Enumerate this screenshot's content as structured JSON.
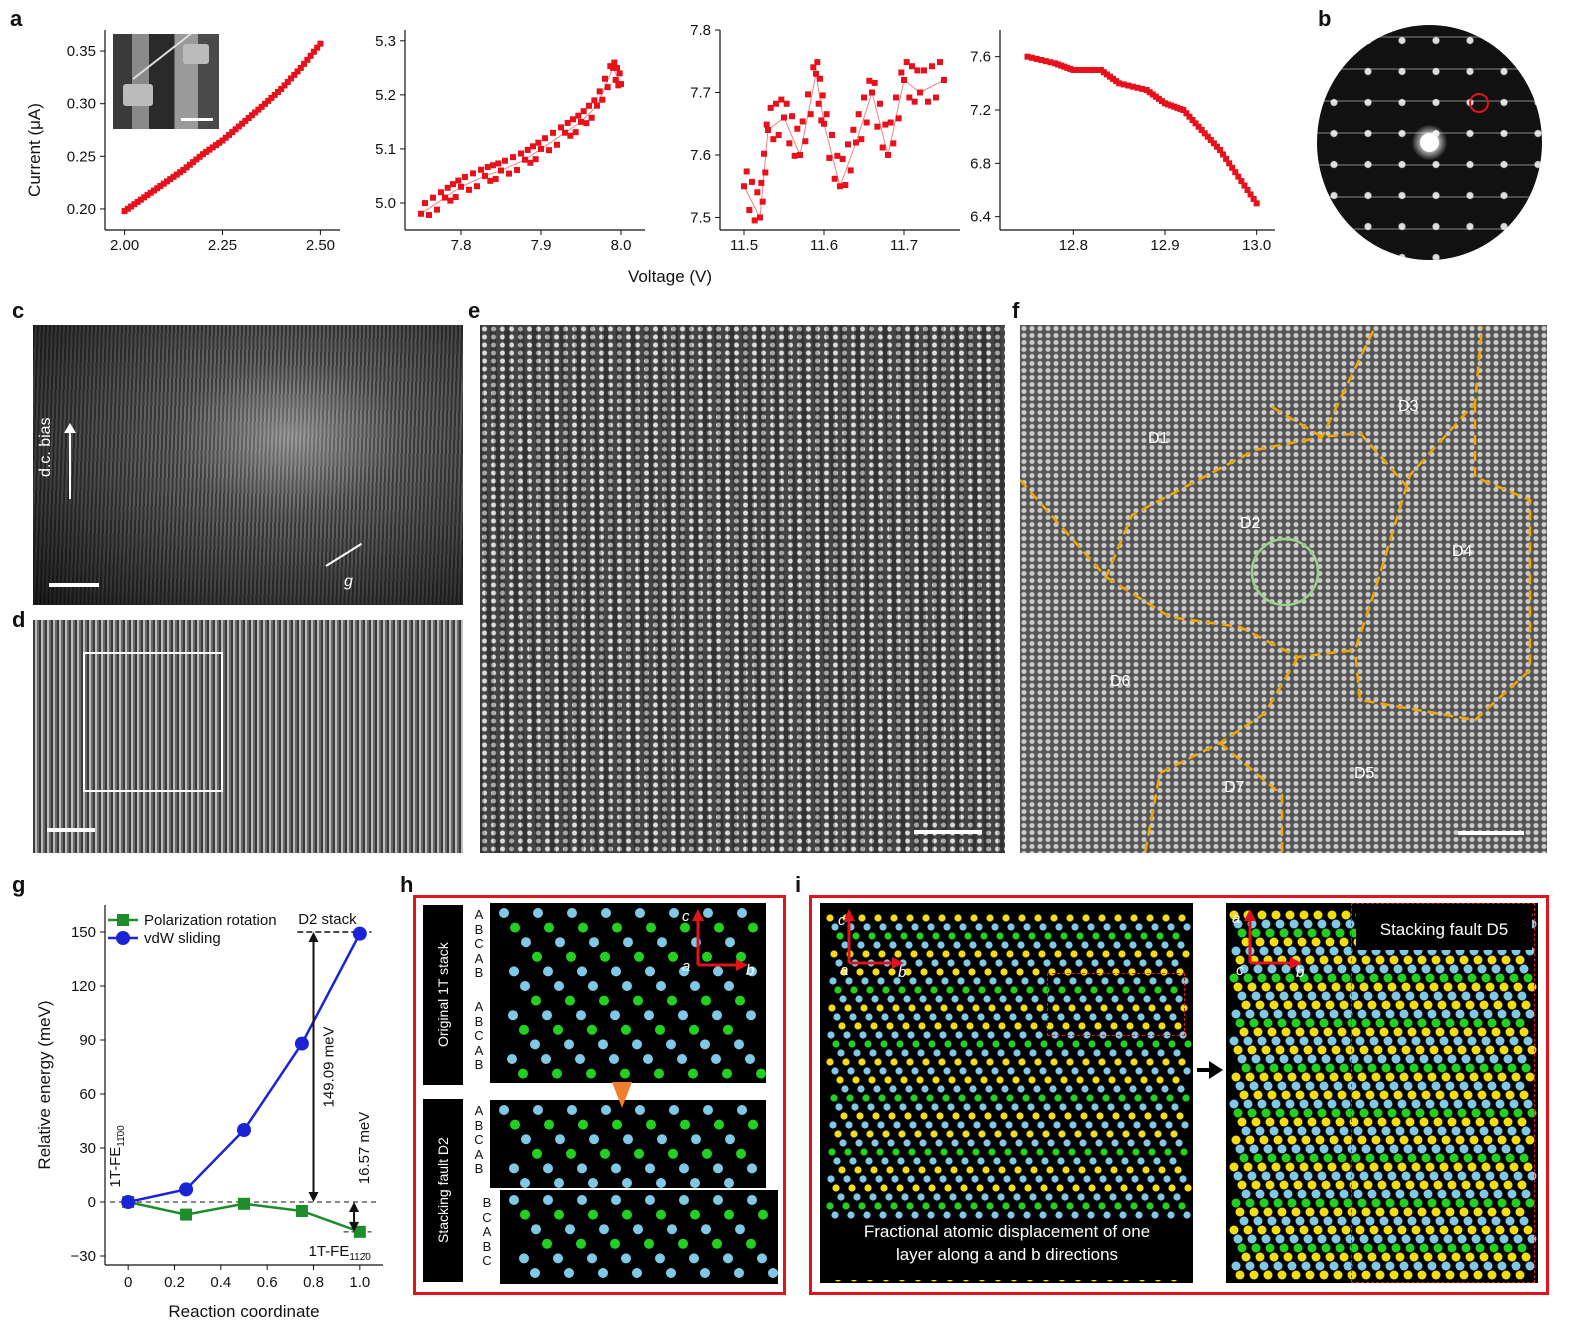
{
  "panel_labels": {
    "a": "a",
    "b": "b",
    "c": "c",
    "d": "d",
    "e": "e",
    "f": "f",
    "g": "g",
    "h": "h",
    "i": "i"
  },
  "panel_a": {
    "shared_xlabel": "Voltage (V)",
    "ylabel": "Current (μA)",
    "subplots": [
      {
        "xticks": [
          "2.00",
          "2.25",
          "2.50"
        ],
        "yticks": [
          "0.20",
          "0.25",
          "0.30",
          "0.35"
        ]
      },
      {
        "xticks": [
          "7.8",
          "7.9",
          "8.0"
        ],
        "yticks": [
          "5.0",
          "5.1",
          "5.2",
          "5.3"
        ]
      },
      {
        "xticks": [
          "11.5",
          "11.6",
          "11.7"
        ],
        "yticks": [
          "7.5",
          "7.6",
          "7.7",
          "7.8"
        ]
      },
      {
        "xticks": [
          "12.8",
          "12.9",
          "13.0"
        ],
        "yticks": [
          "6.4",
          "6.8",
          "7.2",
          "7.6"
        ]
      }
    ]
  },
  "panel_c": {
    "bias_label": "d.c. bias",
    "g_label": "g"
  },
  "panel_f": {
    "domains": [
      "D1",
      "D2",
      "D3",
      "D4",
      "D5",
      "D6",
      "D7"
    ]
  },
  "panel_h": {
    "original_label": "Original 1T stack",
    "fault_label": "Stacking fault D2",
    "seq1": "A B C A B",
    "seq2": "A B C A B",
    "seq3": "A B C A B",
    "seq4": "B C A B C",
    "axis_c": "c",
    "axis_a": "a",
    "axis_b": "b"
  },
  "panel_i": {
    "caption_line1": "Fractional atomic displacement of one",
    "caption_line2": "layer along a and b directions",
    "fault_label": "Stacking fault D5",
    "axis_c": "c",
    "axis_a": "a",
    "axis_b": "b"
  },
  "chart_data": [
    {
      "type": "line",
      "id": "a1",
      "title": "",
      "xlabel": "Voltage (V)",
      "ylabel": "Current (μA)",
      "xlim": [
        1.95,
        2.55
      ],
      "ylim": [
        0.18,
        0.37
      ],
      "x": [
        2.0,
        2.05,
        2.1,
        2.15,
        2.2,
        2.25,
        2.3,
        2.35,
        2.4,
        2.45,
        2.5
      ],
      "series": [
        {
          "name": "I-V",
          "values": [
            0.198,
            0.211,
            0.224,
            0.237,
            0.252,
            0.265,
            0.281,
            0.297,
            0.314,
            0.334,
            0.357
          ]
        }
      ]
    },
    {
      "type": "line",
      "id": "a2",
      "xlim": [
        7.73,
        8.03
      ],
      "ylim": [
        4.95,
        5.32
      ],
      "x": [
        7.75,
        7.78,
        7.8,
        7.83,
        7.85,
        7.88,
        7.9,
        7.93,
        7.95,
        7.97,
        7.99,
        8.0
      ],
      "series": [
        {
          "name": "I-V",
          "values": [
            4.98,
            5.01,
            5.03,
            5.05,
            5.06,
            5.08,
            5.1,
            5.13,
            5.15,
            5.18,
            5.25,
            5.22
          ]
        }
      ]
    },
    {
      "type": "line",
      "id": "a3",
      "xlim": [
        11.47,
        11.77
      ],
      "ylim": [
        7.48,
        7.8
      ],
      "x": [
        11.5,
        11.52,
        11.53,
        11.55,
        11.57,
        11.59,
        11.6,
        11.62,
        11.64,
        11.66,
        11.68,
        11.7,
        11.72,
        11.75
      ],
      "series": [
        {
          "name": "I-V",
          "values": [
            7.55,
            7.5,
            7.64,
            7.66,
            7.6,
            7.73,
            7.65,
            7.55,
            7.62,
            7.7,
            7.6,
            7.72,
            7.7,
            7.72
          ]
        }
      ]
    },
    {
      "type": "line",
      "id": "a4",
      "xlim": [
        12.72,
        13.02
      ],
      "ylim": [
        6.3,
        7.8
      ],
      "x": [
        12.75,
        12.78,
        12.8,
        12.83,
        12.85,
        12.88,
        12.9,
        12.92,
        12.94,
        12.96,
        12.98,
        13.0
      ],
      "series": [
        {
          "name": "I-V",
          "values": [
            7.6,
            7.55,
            7.5,
            7.5,
            7.4,
            7.35,
            7.25,
            7.2,
            7.05,
            6.9,
            6.7,
            6.5
          ]
        }
      ]
    },
    {
      "type": "line",
      "id": "g",
      "title": "",
      "xlabel": "Reaction coordinate",
      "ylabel": "Relative energy (meV)",
      "xlim": [
        -0.1,
        1.1
      ],
      "ylim": [
        -35,
        165
      ],
      "xticks": [
        "0",
        "0.2",
        "0.4",
        "0.6",
        "0.8",
        "1.0"
      ],
      "yticks": [
        "−30",
        "0",
        "30",
        "60",
        "90",
        "120",
        "150"
      ],
      "x": [
        0,
        0.25,
        0.5,
        0.75,
        1.0
      ],
      "series": [
        {
          "name": "Polarization rotation",
          "values": [
            0,
            -7,
            -1,
            -5,
            -16.57
          ],
          "color": "#1e8c2b"
        },
        {
          "name": "vdW sliding",
          "values": [
            0,
            7,
            40,
            88,
            149.09
          ],
          "color": "#1a24d6"
        }
      ],
      "annotations": [
        "D2 stack",
        "149.09 meV",
        "16.57 meV",
        "1T-FE",
        "1T-FE"
      ],
      "annotation_subscripts": [
        "11̄00",
        "112̄0"
      ]
    }
  ]
}
